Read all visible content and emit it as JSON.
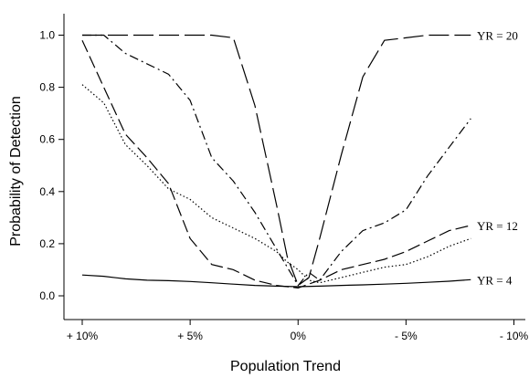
{
  "chart_data": {
    "type": "line",
    "title": "",
    "xlabel": "Population Trend",
    "ylabel": "Probability of Detection",
    "x_tick_labels": [
      "+ 10%",
      "+ 5%",
      "0%",
      "- 5%",
      "- 10%"
    ],
    "x_tick_values": [
      10,
      5,
      0,
      -5,
      -10
    ],
    "xlim": [
      10,
      -10
    ],
    "y_tick_labels": [
      "0.0",
      "0.2",
      "0.4",
      "0.6",
      "0.8",
      "1.0"
    ],
    "y_tick_values": [
      0.0,
      0.2,
      0.4,
      0.6,
      0.8,
      1.0
    ],
    "ylim": [
      -0.1,
      1.08
    ],
    "grid": false,
    "legend": "none",
    "series": [
      {
        "name": "YR = 4",
        "label": "YR = 4",
        "dash": "solid",
        "x": [
          10,
          9,
          8,
          7,
          6,
          5,
          4,
          3,
          2,
          1,
          0,
          -1,
          -2,
          -3,
          -4,
          -5,
          -6,
          -7,
          -8
        ],
        "y": [
          0.08,
          0.075,
          0.065,
          0.06,
          0.058,
          0.055,
          0.05,
          0.045,
          0.04,
          0.037,
          0.035,
          0.037,
          0.04,
          0.042,
          0.045,
          0.048,
          0.052,
          0.056,
          0.062
        ]
      },
      {
        "name": "",
        "dash": "dotted",
        "x": [
          10,
          9,
          8,
          7,
          6,
          5,
          4,
          3,
          2,
          1,
          0.5,
          0,
          -0.5,
          -1,
          -2,
          -3,
          -4,
          -5,
          -6,
          -7,
          -8
        ],
        "y": [
          0.81,
          0.74,
          0.58,
          0.5,
          0.41,
          0.37,
          0.3,
          0.26,
          0.22,
          0.17,
          0.13,
          0.1,
          0.06,
          0.05,
          0.07,
          0.09,
          0.11,
          0.12,
          0.15,
          0.19,
          0.22
        ]
      },
      {
        "name": "YR = 12",
        "label": "YR = 12",
        "dash": "longdash",
        "x": [
          10,
          9,
          8,
          7,
          6,
          5,
          4,
          3,
          2,
          1,
          0,
          -1,
          -2,
          -3,
          -4,
          -5,
          -6,
          -7,
          -8
        ],
        "y": [
          0.98,
          0.8,
          0.62,
          0.53,
          0.43,
          0.22,
          0.12,
          0.1,
          0.06,
          0.04,
          0.03,
          0.06,
          0.1,
          0.12,
          0.14,
          0.17,
          0.21,
          0.25,
          0.27
        ]
      },
      {
        "name": "",
        "dash": "dashdot",
        "x": [
          10,
          9,
          8,
          7,
          6,
          5,
          4,
          3,
          2,
          1,
          0.5,
          0,
          -0.5,
          -1,
          -2,
          -3,
          -4,
          -5,
          -6,
          -7,
          -8
        ],
        "y": [
          1.0,
          1.0,
          0.93,
          0.89,
          0.85,
          0.75,
          0.53,
          0.44,
          0.32,
          0.18,
          0.11,
          0.04,
          0.09,
          0.06,
          0.17,
          0.25,
          0.28,
          0.33,
          0.46,
          0.57,
          0.68
        ]
      },
      {
        "name": "YR = 20",
        "label": "YR = 20",
        "dash": "dashed",
        "x": [
          10,
          9,
          8,
          7,
          6,
          5,
          4,
          3,
          2,
          1,
          0.5,
          0,
          -0.5,
          -1,
          -2,
          -3,
          -4,
          -5,
          -6,
          -7,
          -8
        ],
        "y": [
          1.0,
          1.0,
          1.0,
          1.0,
          1.0,
          1.0,
          1.0,
          0.99,
          0.73,
          0.35,
          0.15,
          0.04,
          0.07,
          0.22,
          0.54,
          0.84,
          0.98,
          0.99,
          1.0,
          1.0,
          1.0
        ]
      }
    ]
  }
}
